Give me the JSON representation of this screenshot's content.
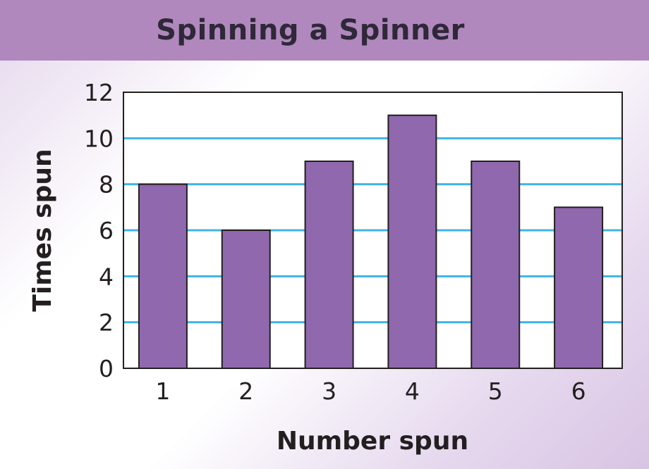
{
  "chart_data": {
    "type": "bar",
    "title": "Spinning a Spinner",
    "xlabel": "Number spun",
    "ylabel": "Times spun",
    "categories": [
      "1",
      "2",
      "3",
      "4",
      "5",
      "6"
    ],
    "values": [
      8,
      6,
      9,
      11,
      9,
      7
    ],
    "ylim": [
      0,
      12
    ],
    "yticks": [
      "0",
      "2",
      "4",
      "6",
      "8",
      "10",
      "12"
    ],
    "grid": true,
    "colors": {
      "bar": "#9068ae",
      "grid": "#3fb4e8",
      "title_bar": "#b088bd"
    }
  }
}
